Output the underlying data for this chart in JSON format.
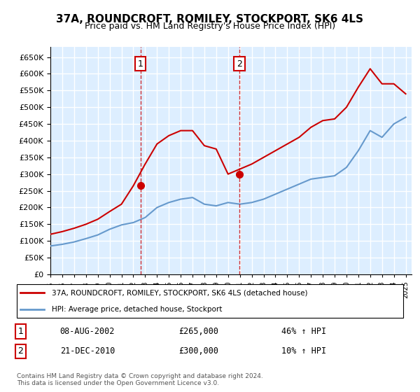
{
  "title": "37A, ROUNDCROFT, ROMILEY, STOCKPORT, SK6 4LS",
  "subtitle": "Price paid vs. HM Land Registry's House Price Index (HPI)",
  "ylabel": "",
  "ylim": [
    0,
    680000
  ],
  "yticks": [
    0,
    50000,
    100000,
    150000,
    200000,
    250000,
    300000,
    350000,
    400000,
    450000,
    500000,
    550000,
    600000,
    650000
  ],
  "xlim_start": 1995.0,
  "xlim_end": 2025.5,
  "sale1_x": 2002.6,
  "sale1_y": 265000,
  "sale1_label": "08-AUG-2002",
  "sale1_price": "£265,000",
  "sale1_hpi": "46% ↑ HPI",
  "sale2_x": 2010.97,
  "sale2_y": 300000,
  "sale2_label": "21-DEC-2010",
  "sale2_price": "£300,000",
  "sale2_hpi": "10% ↑ HPI",
  "red_color": "#cc0000",
  "blue_color": "#6699cc",
  "bg_color": "#ddeeff",
  "grid_color": "#ffffff",
  "legend_label1": "37A, ROUNDCROFT, ROMILEY, STOCKPORT, SK6 4LS (detached house)",
  "legend_label2": "HPI: Average price, detached house, Stockport",
  "footer1": "Contains HM Land Registry data © Crown copyright and database right 2024.",
  "footer2": "This data is licensed under the Open Government Licence v3.0.",
  "hpi_years": [
    1995,
    1996,
    1997,
    1998,
    1999,
    2000,
    2001,
    2002,
    2003,
    2004,
    2005,
    2006,
    2007,
    2008,
    2009,
    2010,
    2011,
    2012,
    2013,
    2014,
    2015,
    2016,
    2017,
    2018,
    2019,
    2020,
    2021,
    2022,
    2023,
    2024,
    2025
  ],
  "hpi_values": [
    85000,
    90000,
    97000,
    107000,
    118000,
    135000,
    148000,
    155000,
    170000,
    200000,
    215000,
    225000,
    230000,
    210000,
    205000,
    215000,
    210000,
    215000,
    225000,
    240000,
    255000,
    270000,
    285000,
    290000,
    295000,
    320000,
    370000,
    430000,
    410000,
    450000,
    470000
  ],
  "red_years": [
    1995,
    1996,
    1997,
    1998,
    1999,
    2000,
    2001,
    2002,
    2003,
    2004,
    2005,
    2006,
    2007,
    2008,
    2009,
    2010,
    2011,
    2012,
    2013,
    2014,
    2015,
    2016,
    2017,
    2018,
    2019,
    2020,
    2021,
    2022,
    2023,
    2024,
    2025
  ],
  "red_values": [
    120000,
    128000,
    138000,
    150000,
    165000,
    188000,
    210000,
    265000,
    330000,
    390000,
    415000,
    430000,
    430000,
    385000,
    375000,
    300000,
    315000,
    330000,
    350000,
    370000,
    390000,
    410000,
    440000,
    460000,
    465000,
    500000,
    560000,
    615000,
    570000,
    570000,
    540000
  ]
}
